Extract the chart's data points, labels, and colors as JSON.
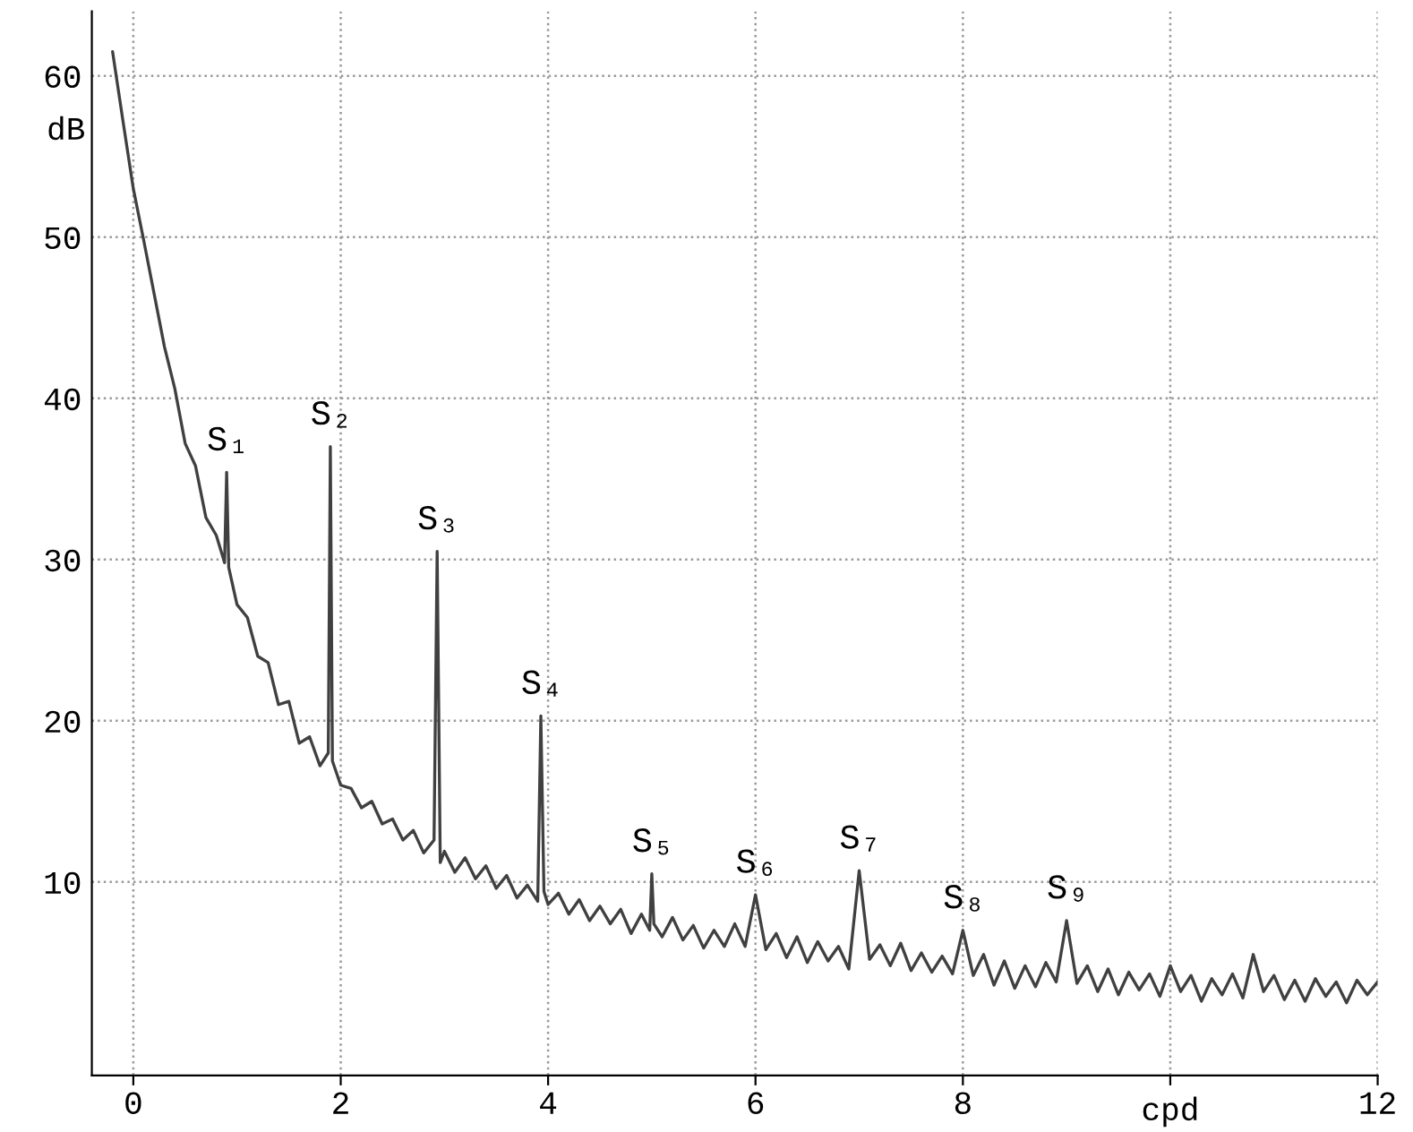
{
  "chart_data": {
    "type": "line",
    "xlabel": "cpd",
    "ylabel": "dB",
    "x": [
      -0.2,
      -0.1,
      0,
      0.1,
      0.2,
      0.3,
      0.4,
      0.5,
      0.6,
      0.7,
      0.8,
      0.88,
      0.9,
      0.92,
      1.0,
      1.1,
      1.2,
      1.3,
      1.4,
      1.5,
      1.6,
      1.7,
      1.8,
      1.88,
      1.9,
      1.92,
      2.0,
      2.1,
      2.2,
      2.3,
      2.4,
      2.5,
      2.6,
      2.7,
      2.8,
      2.9,
      2.93,
      2.96,
      3.0,
      3.1,
      3.2,
      3.3,
      3.4,
      3.5,
      3.6,
      3.7,
      3.8,
      3.9,
      3.93,
      3.96,
      4.0,
      4.1,
      4.2,
      4.3,
      4.4,
      4.5,
      4.6,
      4.7,
      4.8,
      4.9,
      4.98,
      5.0,
      5.02,
      5.1,
      5.2,
      5.3,
      5.4,
      5.5,
      5.6,
      5.7,
      5.8,
      5.9,
      6.0,
      6.1,
      6.2,
      6.3,
      6.4,
      6.5,
      6.6,
      6.7,
      6.8,
      6.9,
      7.0,
      7.1,
      7.2,
      7.3,
      7.4,
      7.5,
      7.6,
      7.7,
      7.8,
      7.9,
      8.0,
      8.1,
      8.2,
      8.3,
      8.4,
      8.5,
      8.6,
      8.7,
      8.8,
      8.9,
      9.0,
      9.1,
      9.2,
      9.3,
      9.4,
      9.5,
      9.6,
      9.7,
      9.8,
      9.9,
      10.0,
      10.1,
      10.2,
      10.3,
      10.4,
      10.5,
      10.6,
      10.7,
      10.8,
      10.9,
      11.0,
      11.1,
      11.2,
      11.3,
      11.4,
      11.5,
      11.6,
      11.7,
      11.8,
      11.9,
      12.0
    ],
    "series": [
      {
        "color": "#404040",
        "values": [
          61.5,
          57.2,
          53.0,
          49.8,
          46.5,
          43.2,
          40.6,
          37.2,
          35.8,
          32.6,
          31.5,
          29.8,
          35.4,
          29.5,
          27.2,
          26.4,
          24.0,
          23.6,
          21.0,
          21.2,
          18.6,
          19.0,
          17.2,
          18.0,
          37.0,
          17.5,
          16.0,
          15.8,
          14.6,
          15.0,
          13.6,
          13.9,
          12.6,
          13.2,
          11.8,
          12.6,
          30.5,
          11.2,
          11.9,
          10.6,
          11.5,
          10.2,
          11.0,
          9.6,
          10.4,
          9.0,
          9.8,
          8.8,
          20.3,
          9.4,
          8.6,
          9.3,
          8.0,
          8.9,
          7.6,
          8.5,
          7.4,
          8.3,
          6.8,
          8.0,
          7.0,
          10.5,
          7.4,
          6.6,
          7.8,
          6.4,
          7.3,
          5.9,
          7.0,
          6.0,
          7.4,
          6.0,
          9.2,
          5.8,
          6.8,
          5.3,
          6.6,
          5.0,
          6.3,
          5.1,
          6.0,
          4.6,
          10.7,
          5.2,
          6.1,
          4.8,
          6.2,
          4.5,
          5.6,
          4.4,
          5.4,
          4.3,
          7.0,
          4.2,
          5.5,
          3.6,
          5.1,
          3.4,
          4.8,
          3.5,
          5.0,
          3.8,
          7.6,
          3.7,
          4.8,
          3.2,
          4.6,
          3.0,
          4.4,
          3.3,
          4.3,
          2.9,
          4.8,
          3.2,
          4.2,
          2.6,
          4.0,
          3.0,
          4.3,
          2.8,
          5.5,
          3.2,
          4.2,
          2.7,
          3.9,
          2.6,
          4.0,
          2.9,
          3.8,
          2.5,
          3.9,
          3.0,
          3.8
        ]
      }
    ],
    "annotations": [
      {
        "text": "S₁",
        "x": 0.9,
        "y": 35.4
      },
      {
        "text": "S₂",
        "x": 1.9,
        "y": 37.0
      },
      {
        "text": "S₃",
        "x": 2.93,
        "y": 30.5
      },
      {
        "text": "S₄",
        "x": 3.93,
        "y": 20.3
      },
      {
        "text": "S₅",
        "x": 5.0,
        "y": 10.5
      },
      {
        "text": "S₆",
        "x": 6.0,
        "y": 9.2
      },
      {
        "text": "S₇",
        "x": 7.0,
        "y": 10.7
      },
      {
        "text": "S₈",
        "x": 8.0,
        "y": 7.0
      },
      {
        "text": "S₉",
        "x": 9.0,
        "y": 7.6
      }
    ],
    "xlim": [
      -0.4,
      12
    ],
    "ylim": [
      -2,
      64
    ],
    "xticks": [
      0,
      2,
      4,
      6,
      8,
      {
        "value": 10,
        "label": null
      },
      12
    ],
    "yticks": [
      10,
      20,
      30,
      40,
      50,
      60
    ],
    "grid": true,
    "line_style": "solid",
    "marker": "none",
    "legend": false
  }
}
